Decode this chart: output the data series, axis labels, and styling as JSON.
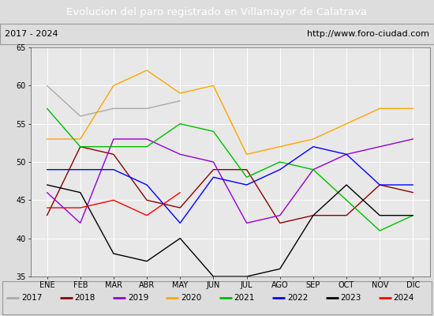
{
  "title": "Evolucion del paro registrado en Villamayor de Calatrava",
  "subtitle_left": "2017 - 2024",
  "subtitle_right": "http://www.foro-ciudad.com",
  "months": [
    "ENE",
    "FEB",
    "MAR",
    "ABR",
    "MAY",
    "JUN",
    "JUL",
    "AGO",
    "SEP",
    "OCT",
    "NOV",
    "DIC"
  ],
  "ylim": [
    35,
    65
  ],
  "yticks": [
    35,
    40,
    45,
    50,
    55,
    60,
    65
  ],
  "series": {
    "2017": {
      "color": "#aaaaaa",
      "data": [
        60,
        56,
        57,
        57,
        58,
        null,
        null,
        null,
        null,
        null,
        null,
        null
      ]
    },
    "2018": {
      "color": "#8b0000",
      "data": [
        43,
        52,
        51,
        45,
        44,
        49,
        49,
        42,
        43,
        43,
        47,
        46
      ]
    },
    "2019": {
      "color": "#9400d3",
      "data": [
        46,
        42,
        53,
        53,
        51,
        50,
        42,
        43,
        49,
        51,
        52,
        53
      ]
    },
    "2020": {
      "color": "#ffa500",
      "data": [
        53,
        53,
        60,
        62,
        59,
        60,
        51,
        52,
        53,
        55,
        57,
        57
      ]
    },
    "2021": {
      "color": "#00bb00",
      "data": [
        57,
        52,
        52,
        52,
        55,
        54,
        48,
        50,
        49,
        45,
        41,
        43
      ]
    },
    "2022": {
      "color": "#0000ff",
      "data": [
        49,
        49,
        49,
        47,
        42,
        48,
        47,
        49,
        52,
        51,
        47,
        47
      ]
    },
    "2023": {
      "color": "#000000",
      "data": [
        47,
        46,
        38,
        37,
        40,
        35,
        35,
        36,
        43,
        47,
        43,
        43
      ]
    },
    "2024": {
      "color": "#ff0000",
      "data": [
        44,
        44,
        45,
        43,
        46,
        null,
        null,
        null,
        null,
        null,
        null,
        null
      ]
    }
  },
  "title_bg_color": "#3366cc",
  "title_text_color": "#ffffff",
  "plot_bg_color": "#e8e8e8",
  "grid_color": "#ffffff",
  "subtitle_bg_color": "#cccccc",
  "legend_bg_color": "#e8e8e8",
  "outer_bg_color": "#dddddd"
}
